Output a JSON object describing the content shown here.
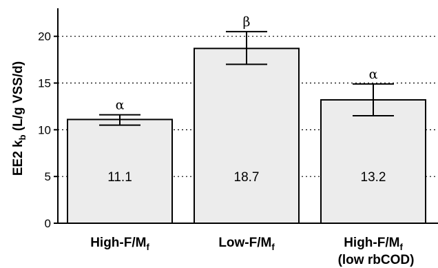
{
  "chart_data": {
    "type": "bar",
    "categories": [
      {
        "main": "High-F/M",
        "sub": "f",
        "line2": ""
      },
      {
        "main": "Low-F/M",
        "sub": "f",
        "line2": ""
      },
      {
        "main": "High-F/M",
        "sub": "f",
        "line2": "(low rbCOD)"
      }
    ],
    "values": [
      11.1,
      18.7,
      13.2
    ],
    "value_labels": [
      "11.1",
      "18.7",
      "13.2"
    ],
    "error_bars": [
      {
        "lower": 10.5,
        "upper": 11.6
      },
      {
        "lower": 17.0,
        "upper": 20.5
      },
      {
        "lower": 11.5,
        "upper": 14.9
      }
    ],
    "significance_labels": [
      "α",
      "β",
      "α"
    ],
    "ylabel": {
      "main": "EE2 k",
      "sub": "b",
      "rest": " (L/g VSS/d)"
    },
    "ylim": [
      0,
      23
    ],
    "yticks": [
      0,
      5,
      10,
      15,
      20
    ],
    "grid": "dotted horizontal at 5, 10, 15, 20",
    "colors": {
      "bar_fill": "#ececec",
      "bar_stroke": "#000000",
      "grid": "#000000"
    }
  }
}
